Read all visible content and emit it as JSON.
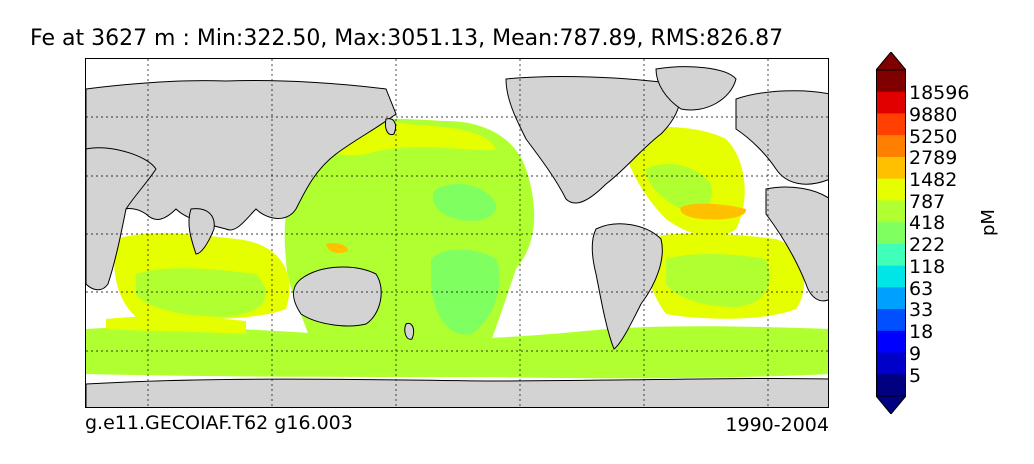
{
  "title": "Fe at 3627 m : Min:322.50, Max:3051.13, Mean:787.89, RMS:826.87",
  "footer_left": "g.e11.GECOIAF.T62 g16.003",
  "footer_right": "1990-2004",
  "colorbar": {
    "unit": "pM",
    "colors": [
      "#000080",
      "#0000c8",
      "#0000ff",
      "#0050ff",
      "#00a0ff",
      "#00e6e6",
      "#40ffb8",
      "#80ff60",
      "#b0ff30",
      "#e6ff00",
      "#ffc000",
      "#ff8000",
      "#ff4000",
      "#e00000",
      "#800000"
    ],
    "ticks": [
      "18596",
      "9880",
      "5250",
      "2789",
      "1482",
      "787",
      "418",
      "222",
      "118",
      "63",
      "33",
      "18",
      "9",
      "5"
    ]
  },
  "colors": {
    "land": "#d3d3d3",
    "no_data": "#ffffff",
    "dominant_field": "#b0ff30",
    "ocean_mid": "#e6ff00",
    "high_patch": "#ffc000",
    "low_patch": "#80ff60"
  }
}
